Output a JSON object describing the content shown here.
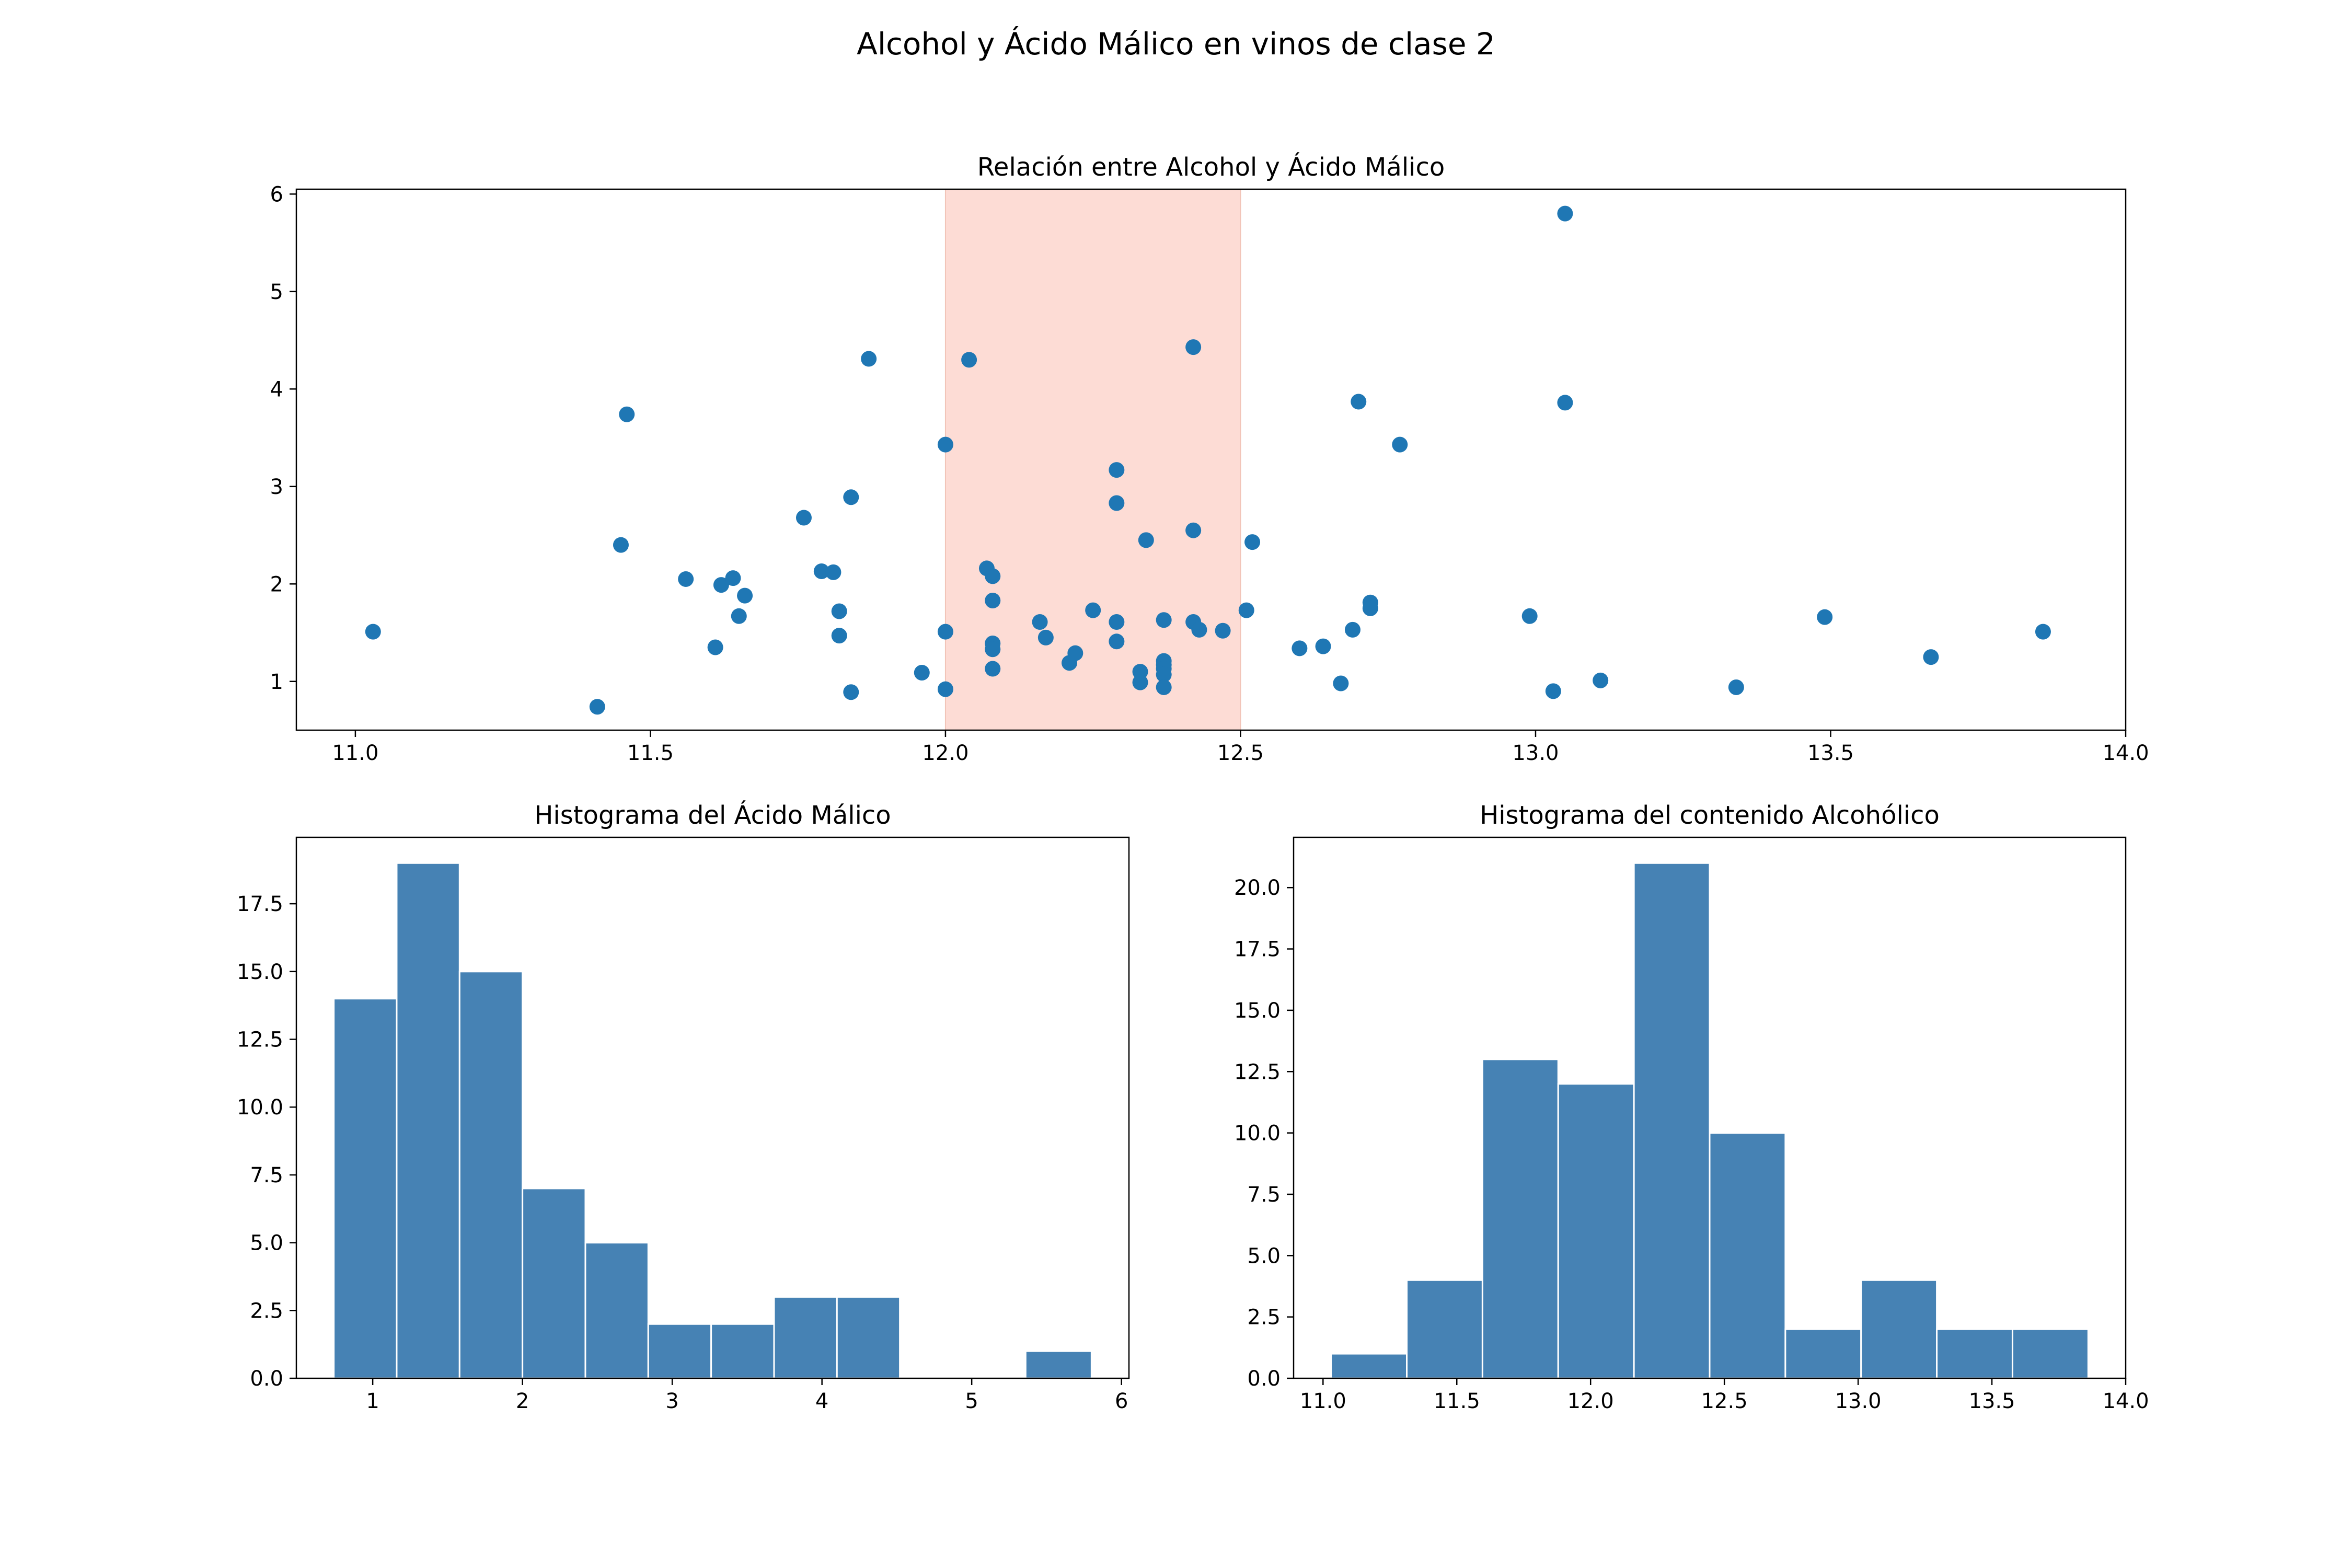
{
  "title": "Alcohol y Ácido Málico en vinos de clase 2",
  "colors": {
    "points": "#1f77b4",
    "bars": "#4682b4",
    "highlight": "#fddcd5"
  },
  "chart_data": [
    {
      "type": "scatter",
      "title": "Relación entre Alcohol y Ácido Málico",
      "xlabel": "",
      "ylabel": "",
      "xlim": [
        10.9,
        14.0
      ],
      "ylim": [
        0.5,
        6.05
      ],
      "xticks": [
        11.0,
        11.5,
        12.0,
        12.5,
        13.0,
        13.5,
        14.0
      ],
      "xtick_labels": [
        "11.0",
        "11.5",
        "12.0",
        "12.5",
        "13.0",
        "13.5",
        "14.0"
      ],
      "yticks": [
        1,
        2,
        3,
        4,
        5,
        6
      ],
      "ytick_labels": [
        "1",
        "2",
        "3",
        "4",
        "5",
        "6"
      ],
      "highlight_x_range": [
        12.0,
        12.5
      ],
      "grid": false,
      "points": [
        [
          11.03,
          1.51
        ],
        [
          11.41,
          0.74
        ],
        [
          11.45,
          2.4
        ],
        [
          11.46,
          3.74
        ],
        [
          11.56,
          2.05
        ],
        [
          11.61,
          1.35
        ],
        [
          11.62,
          1.99
        ],
        [
          11.64,
          2.06
        ],
        [
          11.65,
          1.67
        ],
        [
          11.66,
          1.88
        ],
        [
          11.76,
          2.68
        ],
        [
          11.79,
          2.13
        ],
        [
          11.81,
          2.12
        ],
        [
          11.82,
          1.72
        ],
        [
          11.82,
          1.47
        ],
        [
          11.84,
          2.89
        ],
        [
          11.84,
          0.89
        ],
        [
          11.87,
          4.31
        ],
        [
          11.96,
          1.09
        ],
        [
          12.0,
          3.43
        ],
        [
          12.0,
          1.51
        ],
        [
          12.0,
          0.92
        ],
        [
          12.04,
          4.3
        ],
        [
          12.07,
          2.16
        ],
        [
          12.08,
          2.08
        ],
        [
          12.08,
          1.83
        ],
        [
          12.08,
          1.39
        ],
        [
          12.08,
          1.33
        ],
        [
          12.08,
          1.13
        ],
        [
          12.16,
          1.61
        ],
        [
          12.17,
          1.45
        ],
        [
          12.21,
          1.19
        ],
        [
          12.22,
          1.29
        ],
        [
          12.25,
          1.73
        ],
        [
          12.29,
          3.17
        ],
        [
          12.29,
          2.83
        ],
        [
          12.29,
          1.61
        ],
        [
          12.29,
          1.41
        ],
        [
          12.33,
          1.1
        ],
        [
          12.33,
          0.99
        ],
        [
          12.34,
          2.45
        ],
        [
          12.37,
          1.63
        ],
        [
          12.37,
          1.21
        ],
        [
          12.37,
          1.17
        ],
        [
          12.37,
          1.13
        ],
        [
          12.37,
          1.07
        ],
        [
          12.37,
          0.94
        ],
        [
          12.42,
          4.43
        ],
        [
          12.42,
          2.55
        ],
        [
          12.42,
          1.61
        ],
        [
          12.43,
          1.53
        ],
        [
          12.47,
          1.52
        ],
        [
          12.51,
          1.73
        ],
        [
          12.52,
          2.43
        ],
        [
          12.6,
          1.34
        ],
        [
          12.64,
          1.36
        ],
        [
          12.67,
          0.98
        ],
        [
          12.69,
          1.53
        ],
        [
          12.7,
          3.87
        ],
        [
          12.72,
          1.81
        ],
        [
          12.72,
          1.75
        ],
        [
          12.77,
          3.43
        ],
        [
          12.99,
          1.67
        ],
        [
          13.03,
          0.9
        ],
        [
          13.05,
          5.8
        ],
        [
          13.05,
          3.86
        ],
        [
          13.11,
          1.01
        ],
        [
          13.34,
          0.94
        ],
        [
          13.49,
          1.66
        ],
        [
          13.67,
          1.25
        ],
        [
          13.86,
          1.51
        ]
      ]
    },
    {
      "type": "bar",
      "subtype": "histogram",
      "title": "Histograma del Ácido Málico",
      "xlabel": "",
      "ylabel": "",
      "xlim": [
        0.49,
        6.05
      ],
      "ylim": [
        0,
        19.95
      ],
      "xticks": [
        1,
        2,
        3,
        4,
        5,
        6
      ],
      "xtick_labels": [
        "1",
        "2",
        "3",
        "4",
        "5",
        "6"
      ],
      "yticks": [
        0,
        2.5,
        5,
        7.5,
        10,
        12.5,
        15,
        17.5
      ],
      "ytick_labels": [
        "0.0",
        "2.5",
        "5.0",
        "7.5",
        "10.0",
        "12.5",
        "15.0",
        "17.5"
      ],
      "bin_edges": [
        0.74,
        1.16,
        1.58,
        2.0,
        2.42,
        2.84,
        3.26,
        3.68,
        4.1,
        4.52,
        4.94,
        5.36,
        5.8
      ],
      "values": [
        14,
        19,
        15,
        7,
        5,
        2,
        2,
        3,
        3,
        0,
        0,
        1
      ]
    },
    {
      "type": "bar",
      "subtype": "histogram",
      "title": "Histograma del contenido Alcohólico",
      "xlabel": "",
      "ylabel": "",
      "xlim": [
        10.89,
        14.0
      ],
      "ylim": [
        0,
        22.05
      ],
      "xticks": [
        11.0,
        11.5,
        12.0,
        12.5,
        13.0,
        13.5,
        14.0
      ],
      "xtick_labels": [
        "11.0",
        "11.5",
        "12.0",
        "12.5",
        "13.0",
        "13.5",
        "14.0"
      ],
      "yticks": [
        0,
        2.5,
        5,
        7.5,
        10,
        12.5,
        15,
        17.5,
        20
      ],
      "ytick_labels": [
        "0.0",
        "2.5",
        "5.0",
        "7.5",
        "10.0",
        "12.5",
        "15.0",
        "17.5",
        "20.0"
      ],
      "bin_edges": [
        11.03,
        11.313,
        11.596,
        11.879,
        12.162,
        12.445,
        12.728,
        13.011,
        13.294,
        13.577,
        13.86
      ],
      "values": [
        1,
        4,
        13,
        12,
        21,
        10,
        2,
        4,
        2,
        2
      ]
    }
  ]
}
